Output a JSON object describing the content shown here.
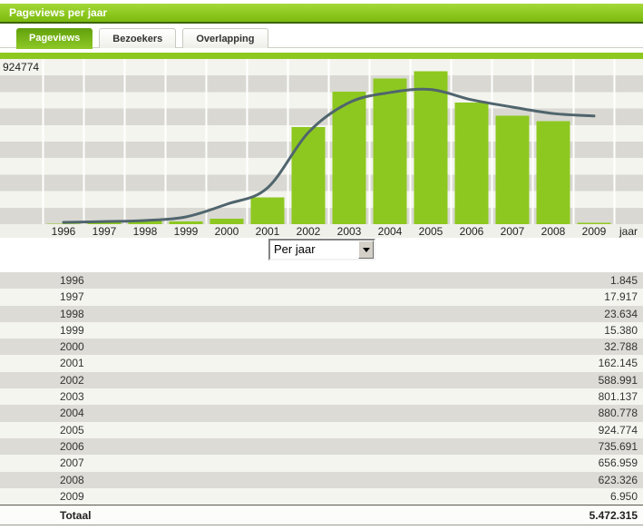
{
  "header": {
    "title": "Pageviews per jaar"
  },
  "tabs": [
    {
      "label": "Pageviews",
      "active": true
    },
    {
      "label": "Bezoekers",
      "active": false
    },
    {
      "label": "Overlapping",
      "active": false
    }
  ],
  "chart_data": {
    "type": "bar",
    "categories": [
      "1996",
      "1997",
      "1998",
      "1999",
      "2000",
      "2001",
      "2002",
      "2003",
      "2004",
      "2005",
      "2006",
      "2007",
      "2008",
      "2009"
    ],
    "series": [
      {
        "name": "pageviews",
        "type": "bar",
        "values": [
          1845,
          17917,
          23634,
          15380,
          32788,
          162145,
          588991,
          801137,
          880778,
          924774,
          735691,
          656959,
          623326,
          6950
        ],
        "color": "#8dc820"
      },
      {
        "name": "trend",
        "type": "line",
        "values": [
          11000,
          16000,
          22000,
          44000,
          121000,
          220000,
          555000,
          736000,
          797000,
          815000,
          753000,
          709000,
          670000,
          655000
        ],
        "color": "#50656d"
      }
    ],
    "title": "Pageviews per jaar",
    "xlabel": "jaar",
    "ylabel": "",
    "ylim": [
      0,
      1000000
    ],
    "y_max_label": "924774",
    "x_axis_suffix": "jaar",
    "grid": "horizontal-stripes",
    "legend": "none",
    "colors": {
      "bar": "#8dc820",
      "line": "#50656d",
      "stripe_light": "#f4f4ef",
      "stripe_dark": "#d9d8d2"
    }
  },
  "dropdown": {
    "value": "Per jaar"
  },
  "icons": {
    "dropdown_arrow": "triangle-down"
  },
  "table": {
    "rows": [
      [
        "1996",
        "1.845"
      ],
      [
        "1997",
        "17.917"
      ],
      [
        "1998",
        "23.634"
      ],
      [
        "1999",
        "15.380"
      ],
      [
        "2000",
        "32.788"
      ],
      [
        "2001",
        "162.145"
      ],
      [
        "2002",
        "588.991"
      ],
      [
        "2003",
        "801.137"
      ],
      [
        "2004",
        "880.778"
      ],
      [
        "2005",
        "924.774"
      ],
      [
        "2006",
        "735.691"
      ],
      [
        "2007",
        "656.959"
      ],
      [
        "2008",
        "623.326"
      ],
      [
        "2009",
        "6.950"
      ]
    ],
    "total": {
      "label": "Totaal",
      "value": "5.472.315"
    }
  }
}
